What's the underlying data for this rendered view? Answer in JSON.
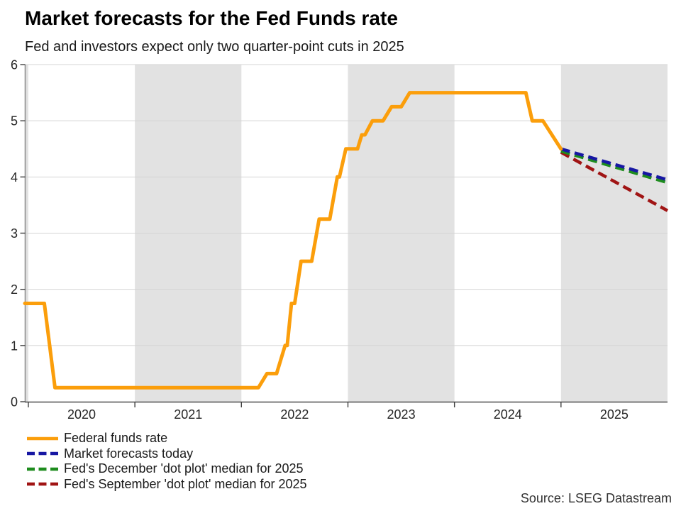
{
  "header": {
    "title": "Market forecasts for the Fed Funds rate",
    "subtitle": "Fed and investors expect only two quarter-point cuts in 2025"
  },
  "source": "Source: LSEG Datastream",
  "legend": [
    {
      "label": "Federal funds rate",
      "color": "#FB9E0B",
      "dashed": false
    },
    {
      "label": "Market forecasts today",
      "color": "#1717A3",
      "dashed": true
    },
    {
      "label": "Fed's December 'dot plot' median for 2025",
      "color": "#1E8C1E",
      "dashed": true
    },
    {
      "label": "Fed's September 'dot plot' median for 2025",
      "color": "#A01414",
      "dashed": true
    }
  ],
  "chart_data": {
    "type": "line",
    "title": "Market forecasts for the Fed Funds rate",
    "subtitle": "Fed and investors expect only two quarter-point cuts in 2025",
    "xlabel": "",
    "ylabel": "",
    "xlim": [
      2019.967,
      2026.0
    ],
    "ylim": [
      0,
      6
    ],
    "y_ticks": [
      0,
      1,
      2,
      3,
      4,
      5,
      6
    ],
    "x_tick_marks": [
      2020,
      2021,
      2022,
      2023,
      2024,
      2025
    ],
    "x_tick_labels": [
      "2020",
      "2021",
      "2022",
      "2023",
      "2024",
      "2025"
    ],
    "x_tick_label_centers": [
      2020.5,
      2021.5,
      2022.5,
      2023.5,
      2024.5,
      2025.5
    ],
    "grid": true,
    "legend_position": "bottom-left",
    "shaded_bands_x": [
      [
        2019.967,
        2020
      ],
      [
        2021,
        2022
      ],
      [
        2023,
        2024
      ],
      [
        2025,
        2026
      ]
    ],
    "band_color": "#e2e2e2",
    "grid_color": "#d4d4d4",
    "yaxis_color": "#8f8f8f",
    "xaxis_color": "#4d4d4d",
    "tick_color": "#404040",
    "label_color": "#262626",
    "series": [
      {
        "name": "Federal funds rate",
        "color": "#FB9E0B",
        "dash": null,
        "width": 5,
        "points": [
          [
            2019.967,
            1.75
          ],
          [
            2020.15,
            1.75
          ],
          [
            2020.25,
            0.25
          ],
          [
            2022.16,
            0.25
          ],
          [
            2022.24,
            0.5
          ],
          [
            2022.33,
            0.5
          ],
          [
            2022.41,
            1.0
          ],
          [
            2022.43,
            1.0
          ],
          [
            2022.47,
            1.75
          ],
          [
            2022.5,
            1.75
          ],
          [
            2022.56,
            2.5
          ],
          [
            2022.66,
            2.5
          ],
          [
            2022.73,
            3.25
          ],
          [
            2022.83,
            3.25
          ],
          [
            2022.9,
            4.0
          ],
          [
            2022.92,
            4.0
          ],
          [
            2022.98,
            4.5
          ],
          [
            2023.09,
            4.5
          ],
          [
            2023.13,
            4.75
          ],
          [
            2023.16,
            4.75
          ],
          [
            2023.23,
            5.0
          ],
          [
            2023.33,
            5.0
          ],
          [
            2023.41,
            5.25
          ],
          [
            2023.5,
            5.25
          ],
          [
            2023.58,
            5.5
          ],
          [
            2024.67,
            5.5
          ],
          [
            2024.73,
            5.0
          ],
          [
            2024.83,
            5.0
          ],
          [
            2025.0,
            4.5
          ]
        ]
      },
      {
        "name": "Market forecasts today",
        "color": "#1717A3",
        "dash": "13,7",
        "width": 4.5,
        "points": [
          [
            2025.0,
            4.5
          ],
          [
            2026.0,
            3.95
          ]
        ]
      },
      {
        "name": "Fed's December 'dot plot' median for 2025",
        "color": "#1E8C1E",
        "dash": "13,7",
        "width": 4.5,
        "points": [
          [
            2025.0,
            4.46
          ],
          [
            2026.0,
            3.9
          ]
        ]
      },
      {
        "name": "Fed's September 'dot plot' median for 2025",
        "color": "#A01414",
        "dash": "13,7",
        "width": 4.5,
        "points": [
          [
            2025.0,
            4.44
          ],
          [
            2026.0,
            3.4
          ]
        ]
      }
    ]
  }
}
